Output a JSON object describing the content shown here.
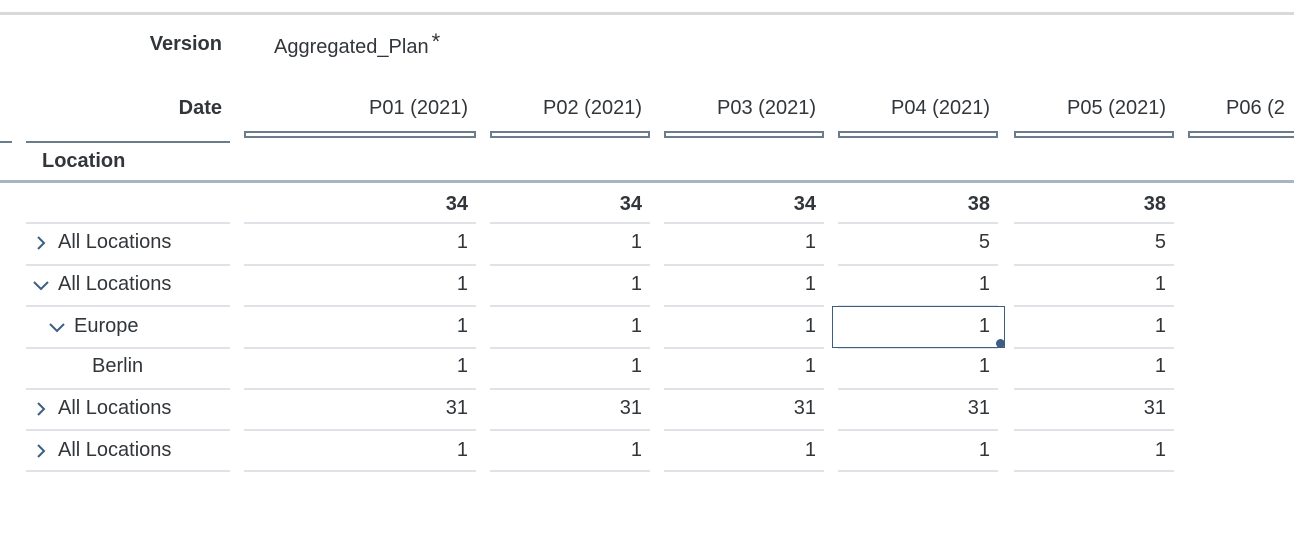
{
  "header": {
    "version_label": "Version",
    "version_value": "Aggregated_Plan",
    "version_modified_mark": "*",
    "date_label": "Date",
    "location_label": "Location"
  },
  "columns": [
    "P01 (2021)",
    "P02 (2021)",
    "P03 (2021)",
    "P04 (2021)",
    "P05 (2021)",
    "P06 (2"
  ],
  "totals": [
    "34",
    "34",
    "34",
    "38",
    "38"
  ],
  "rows": [
    {
      "label": "All Locations",
      "icon": "chevron-right-icon",
      "values": [
        "1",
        "1",
        "1",
        "5",
        "5"
      ]
    },
    {
      "label": "All Locations",
      "icon": "chevron-down-icon",
      "values": [
        "1",
        "1",
        "1",
        "1",
        "1"
      ]
    },
    {
      "label": "Europe",
      "icon": "chevron-down-icon",
      "values": [
        "1",
        "1",
        "1",
        "1",
        "1"
      ]
    },
    {
      "label": "Berlin",
      "icon": "",
      "values": [
        "1",
        "1",
        "1",
        "1",
        "1"
      ]
    },
    {
      "label": "All Locations",
      "icon": "chevron-right-icon",
      "values": [
        "31",
        "31",
        "31",
        "31",
        "31"
      ]
    },
    {
      "label": "All Locations",
      "icon": "chevron-right-icon",
      "values": [
        "1",
        "1",
        "1",
        "1",
        "1"
      ]
    }
  ],
  "colors": {
    "accent": "#3d5d82",
    "text": "#32363a",
    "gridline": "#dfe3e7"
  }
}
